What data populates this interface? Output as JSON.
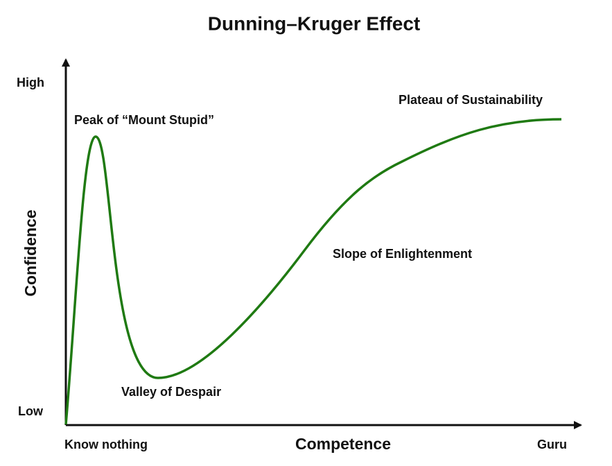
{
  "title": "Dunning–Kruger Effect",
  "y_axis": {
    "label": "Confidence",
    "high": "High",
    "low": "Low"
  },
  "x_axis": {
    "label": "Competence",
    "start": "Know nothing",
    "end": "Guru"
  },
  "annotations": [
    "Peak of “Mount Stupid”",
    "Valley of Despair",
    "Slope of Enlightenment",
    "Plateau of Sustainability"
  ]
}
